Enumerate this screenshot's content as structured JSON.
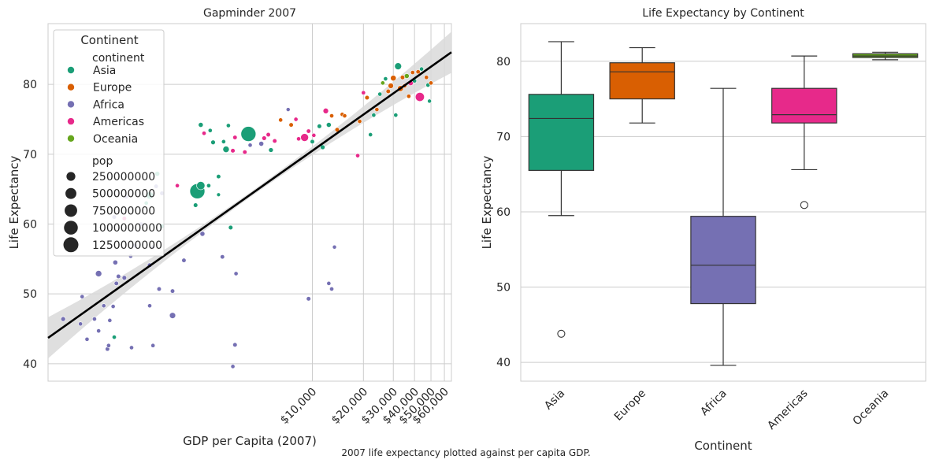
{
  "caption": "2007 life expectancy plotted against per capita GDP.",
  "colors": {
    "Asia": "#1b9e77",
    "Europe": "#d95f02",
    "Africa": "#7570b3",
    "Americas": "#e7298a",
    "Oceania": "#66a61e",
    "regression": "#000000",
    "ci_band": "#d9d9d9",
    "grid": "#cccccc",
    "spine": "#cccccc"
  },
  "chart_data": [
    {
      "type": "scatter",
      "title": "Gapminder 2007",
      "xlabel": "GDP per Capita (2007)",
      "ylabel": "Life Expectancy",
      "xscale": "log",
      "xlim": [
        277,
        66000
      ],
      "ylim": [
        37.5,
        88.7
      ],
      "xtick_values": [
        10000,
        20000,
        30000,
        40000,
        50000,
        60000
      ],
      "xtick_labels": [
        "$10,000",
        "$20,000",
        "$30,000",
        "$40,000",
        "$50,000",
        "$60,000"
      ],
      "ytick_values": [
        40,
        50,
        60,
        70,
        80
      ],
      "ytick_labels": [
        "40",
        "50",
        "60",
        "70",
        "80"
      ],
      "grid": true,
      "legend": {
        "title": "Continent",
        "hue_header": "continent",
        "hue_items": [
          "Asia",
          "Europe",
          "Africa",
          "Americas",
          "Oceania"
        ],
        "size_header": "pop",
        "size_items": [
          "250000000",
          "500000000",
          "750000000",
          "1000000000",
          "1250000000"
        ],
        "size_values": [
          250000000,
          500000000,
          750000000,
          1000000000,
          1250000000
        ],
        "position": "upper left"
      },
      "regression_line": {
        "x1": 277,
        "y1": 43.7,
        "x2": 66000,
        "y2": 84.6
      },
      "points": [
        {
          "x": 1600,
          "y": 65.5,
          "c": "Americas",
          "pop": 4100000
        },
        {
          "x": 2450,
          "y": 65.5,
          "c": "Asia",
          "pop": 5000000
        },
        {
          "x": 2100,
          "y": 64.7,
          "c": "Asia",
          "pop": 1318000000
        },
        {
          "x": 2200,
          "y": 65.5,
          "c": "Asia",
          "pop": 230000000
        },
        {
          "x": 1100,
          "y": 64.1,
          "c": "Asia",
          "pop": 150000000
        },
        {
          "x": 1300,
          "y": 64.4,
          "c": "Africa",
          "pop": 10000000
        },
        {
          "x": 1050,
          "y": 63.0,
          "c": "Asia",
          "pop": 5000000
        },
        {
          "x": 1200,
          "y": 65.4,
          "c": "Africa",
          "pop": 8000000
        },
        {
          "x": 800,
          "y": 63.9,
          "c": "Africa",
          "pop": 5000000
        },
        {
          "x": 680,
          "y": 61.0,
          "c": "Africa",
          "pop": 10000000
        },
        {
          "x": 780,
          "y": 60.8,
          "c": "Americas",
          "pop": 8000000
        },
        {
          "x": 980,
          "y": 60.0,
          "c": "Africa",
          "pop": 5000000
        },
        {
          "x": 2050,
          "y": 62.7,
          "c": "Asia",
          "pop": 10000000
        },
        {
          "x": 1220,
          "y": 67.2,
          "c": "Asia",
          "pop": 20000000
        },
        {
          "x": 2800,
          "y": 66.8,
          "c": "Asia",
          "pop": 8000000
        },
        {
          "x": 1300,
          "y": 59.7,
          "c": "Asia",
          "pop": 15000000
        },
        {
          "x": 2250,
          "y": 58.6,
          "c": "Africa",
          "pop": 20000000
        },
        {
          "x": 900,
          "y": 56.9,
          "c": "Africa",
          "pop": 10000000
        },
        {
          "x": 850,
          "y": 55.4,
          "c": "Africa",
          "pop": 5000000
        },
        {
          "x": 1150,
          "y": 56.7,
          "c": "Africa",
          "pop": 5000000
        },
        {
          "x": 3300,
          "y": 59.5,
          "c": "Asia",
          "pop": 10000000
        },
        {
          "x": 2800,
          "y": 64.2,
          "c": "Asia",
          "pop": 1000000
        },
        {
          "x": 1100,
          "y": 54.1,
          "c": "Africa",
          "pop": 15000000
        },
        {
          "x": 1750,
          "y": 54.8,
          "c": "Africa",
          "pop": 8000000
        },
        {
          "x": 2950,
          "y": 55.3,
          "c": "Africa",
          "pop": 8000000
        },
        {
          "x": 690,
          "y": 54.5,
          "c": "Africa",
          "pop": 20000000
        },
        {
          "x": 720,
          "y": 52.5,
          "c": "Africa",
          "pop": 10000000
        },
        {
          "x": 780,
          "y": 52.3,
          "c": "Africa",
          "pop": 12000000
        },
        {
          "x": 550,
          "y": 52.9,
          "c": "Africa",
          "pop": 80000000
        },
        {
          "x": 700,
          "y": 51.5,
          "c": "Africa",
          "pop": 10000000
        },
        {
          "x": 1250,
          "y": 50.7,
          "c": "Africa",
          "pop": 8000000
        },
        {
          "x": 1500,
          "y": 50.4,
          "c": "Africa",
          "pop": 8000000
        },
        {
          "x": 1500,
          "y": 46.9,
          "c": "Africa",
          "pop": 70000000
        },
        {
          "x": 3550,
          "y": 52.9,
          "c": "Africa",
          "pop": 5000000
        },
        {
          "x": 340,
          "y": 46.4,
          "c": "Africa",
          "pop": 15000000
        },
        {
          "x": 440,
          "y": 49.6,
          "c": "Africa",
          "pop": 5000000
        },
        {
          "x": 430,
          "y": 45.7,
          "c": "Africa",
          "pop": 5000000
        },
        {
          "x": 470,
          "y": 43.5,
          "c": "Africa",
          "pop": 5000000
        },
        {
          "x": 520,
          "y": 46.4,
          "c": "Africa",
          "pop": 5000000
        },
        {
          "x": 590,
          "y": 48.3,
          "c": "Africa",
          "pop": 5000000
        },
        {
          "x": 640,
          "y": 46.2,
          "c": "Africa",
          "pop": 5000000
        },
        {
          "x": 670,
          "y": 48.2,
          "c": "Africa",
          "pop": 5000000
        },
        {
          "x": 550,
          "y": 44.7,
          "c": "Africa",
          "pop": 5000000
        },
        {
          "x": 620,
          "y": 42.1,
          "c": "Africa",
          "pop": 8000000
        },
        {
          "x": 630,
          "y": 42.6,
          "c": "Africa",
          "pop": 5000000
        },
        {
          "x": 680,
          "y": 43.8,
          "c": "Asia",
          "pop": 5000000
        },
        {
          "x": 860,
          "y": 42.3,
          "c": "Africa",
          "pop": 5000000
        },
        {
          "x": 1100,
          "y": 48.3,
          "c": "Africa",
          "pop": 5000000
        },
        {
          "x": 1150,
          "y": 42.6,
          "c": "Africa",
          "pop": 5000000
        },
        {
          "x": 3500,
          "y": 42.7,
          "c": "Africa",
          "pop": 10000000
        },
        {
          "x": 3400,
          "y": 39.6,
          "c": "Africa",
          "pop": 5000000
        },
        {
          "x": 9500,
          "y": 49.3,
          "c": "Africa",
          "pop": 10000000
        },
        {
          "x": 12500,
          "y": 51.5,
          "c": "Africa",
          "pop": 5000000
        },
        {
          "x": 13000,
          "y": 50.7,
          "c": "Africa",
          "pop": 5000000
        },
        {
          "x": 13500,
          "y": 56.7,
          "c": "Africa",
          "pop": 3000000
        },
        {
          "x": 4200,
          "y": 72.9,
          "c": "Asia",
          "pop": 1318000000
        },
        {
          "x": 3100,
          "y": 70.7,
          "c": "Asia",
          "pop": 85000000
        },
        {
          "x": 3500,
          "y": 72.4,
          "c": "Americas",
          "pop": 8000000
        },
        {
          "x": 3000,
          "y": 71.8,
          "c": "Asia",
          "pop": 5000000
        },
        {
          "x": 2600,
          "y": 71.7,
          "c": "Asia",
          "pop": 12000000
        },
        {
          "x": 2500,
          "y": 73.4,
          "c": "Asia",
          "pop": 5000000
        },
        {
          "x": 2200,
          "y": 74.2,
          "c": "Asia",
          "pop": 20000000
        },
        {
          "x": 2300,
          "y": 73.0,
          "c": "Americas",
          "pop": 5000000
        },
        {
          "x": 3200,
          "y": 74.1,
          "c": "Asia",
          "pop": 5000000
        },
        {
          "x": 3400,
          "y": 70.5,
          "c": "Americas",
          "pop": 10000000
        },
        {
          "x": 4000,
          "y": 70.3,
          "c": "Americas",
          "pop": 8000000
        },
        {
          "x": 4300,
          "y": 71.3,
          "c": "Africa",
          "pop": 5000000
        },
        {
          "x": 5000,
          "y": 71.5,
          "c": "Africa",
          "pop": 20000000
        },
        {
          "x": 5500,
          "y": 72.8,
          "c": "Americas",
          "pop": 8000000
        },
        {
          "x": 5200,
          "y": 72.3,
          "c": "Americas",
          "pop": 12000000
        },
        {
          "x": 5700,
          "y": 70.6,
          "c": "Asia",
          "pop": 15000000
        },
        {
          "x": 6000,
          "y": 71.9,
          "c": "Americas",
          "pop": 8000000
        },
        {
          "x": 6500,
          "y": 74.9,
          "c": "Europe",
          "pop": 5000000
        },
        {
          "x": 7200,
          "y": 76.4,
          "c": "Africa",
          "pop": 3000000
        },
        {
          "x": 7500,
          "y": 74.2,
          "c": "Europe",
          "pop": 8000000
        },
        {
          "x": 8000,
          "y": 75.0,
          "c": "Americas",
          "pop": 5000000
        },
        {
          "x": 8300,
          "y": 72.2,
          "c": "Americas",
          "pop": 5000000
        },
        {
          "x": 9000,
          "y": 72.4,
          "c": "Americas",
          "pop": 190000000
        },
        {
          "x": 9500,
          "y": 73.3,
          "c": "Americas",
          "pop": 8000000
        },
        {
          "x": 10000,
          "y": 71.8,
          "c": "Asia",
          "pop": 8000000
        },
        {
          "x": 10200,
          "y": 72.7,
          "c": "Americas",
          "pop": 5000000
        },
        {
          "x": 11000,
          "y": 74.0,
          "c": "Asia",
          "pop": 10000000
        },
        {
          "x": 11500,
          "y": 71.0,
          "c": "Asia",
          "pop": 15000000
        },
        {
          "x": 12000,
          "y": 76.2,
          "c": "Americas",
          "pop": 40000000
        },
        {
          "x": 12500,
          "y": 74.2,
          "c": "Asia",
          "pop": 20000000
        },
        {
          "x": 13000,
          "y": 75.5,
          "c": "Europe",
          "pop": 5000000
        },
        {
          "x": 14000,
          "y": 73.5,
          "c": "Europe",
          "pop": 10000000
        },
        {
          "x": 15000,
          "y": 75.7,
          "c": "Europe",
          "pop": 5000000
        },
        {
          "x": 15500,
          "y": 75.5,
          "c": "Europe",
          "pop": 5000000
        },
        {
          "x": 18500,
          "y": 69.8,
          "c": "Americas",
          "pop": 5000000
        },
        {
          "x": 19000,
          "y": 74.7,
          "c": "Europe",
          "pop": 5000000
        },
        {
          "x": 20000,
          "y": 78.8,
          "c": "Americas",
          "pop": 5000000
        },
        {
          "x": 21000,
          "y": 78.1,
          "c": "Europe",
          "pop": 10000000
        },
        {
          "x": 22000,
          "y": 72.8,
          "c": "Asia",
          "pop": 5000000
        },
        {
          "x": 23000,
          "y": 75.6,
          "c": "Asia",
          "pop": 5000000
        },
        {
          "x": 24000,
          "y": 76.4,
          "c": "Europe",
          "pop": 5000000
        },
        {
          "x": 25000,
          "y": 78.6,
          "c": "Asia",
          "pop": 5000000
        },
        {
          "x": 26000,
          "y": 80.2,
          "c": "Oceania",
          "pop": 5000000
        },
        {
          "x": 27000,
          "y": 80.8,
          "c": "Asia",
          "pop": 5000000
        },
        {
          "x": 28000,
          "y": 79.0,
          "c": "Europe",
          "pop": 10000000
        },
        {
          "x": 29000,
          "y": 79.8,
          "c": "Europe",
          "pop": 40000000
        },
        {
          "x": 30000,
          "y": 80.9,
          "c": "Europe",
          "pop": 50000000
        },
        {
          "x": 31000,
          "y": 75.6,
          "c": "Asia",
          "pop": 5000000
        },
        {
          "x": 32000,
          "y": 82.6,
          "c": "Asia",
          "pop": 120000000
        },
        {
          "x": 33000,
          "y": 79.4,
          "c": "Europe",
          "pop": 60000000
        },
        {
          "x": 34000,
          "y": 81.0,
          "c": "Europe",
          "pop": 10000000
        },
        {
          "x": 35000,
          "y": 79.8,
          "c": "Europe",
          "pop": 5000000
        },
        {
          "x": 36000,
          "y": 81.2,
          "c": "Oceania",
          "pop": 20000000
        },
        {
          "x": 37000,
          "y": 78.3,
          "c": "Europe",
          "pop": 5000000
        },
        {
          "x": 38000,
          "y": 80.2,
          "c": "Americas",
          "pop": 30000000
        },
        {
          "x": 39000,
          "y": 81.7,
          "c": "Europe",
          "pop": 5000000
        },
        {
          "x": 40000,
          "y": 80.5,
          "c": "Asia",
          "pop": 5000000
        },
        {
          "x": 42000,
          "y": 81.8,
          "c": "Europe",
          "pop": 8000000
        },
        {
          "x": 44000,
          "y": 82.2,
          "c": "Asia",
          "pop": 5000000
        },
        {
          "x": 43000,
          "y": 78.2,
          "c": "Americas",
          "pop": 301000000
        },
        {
          "x": 47000,
          "y": 81.0,
          "c": "Europe",
          "pop": 5000000
        },
        {
          "x": 48000,
          "y": 79.9,
          "c": "Asia",
          "pop": 5000000
        },
        {
          "x": 49000,
          "y": 77.6,
          "c": "Asia",
          "pop": 3000000
        },
        {
          "x": 50000,
          "y": 80.2,
          "c": "Europe",
          "pop": 5000000
        }
      ]
    },
    {
      "type": "box",
      "title": "Life Expectancy by Continent",
      "xlabel": "Continent",
      "ylabel": "Life Expectancy",
      "categories": [
        "Asia",
        "Europe",
        "Africa",
        "Americas",
        "Oceania"
      ],
      "ylim": [
        37.5,
        85
      ],
      "ytick_values": [
        40,
        50,
        60,
        70,
        80
      ],
      "ytick_labels": [
        "40",
        "50",
        "60",
        "70",
        "80"
      ],
      "grid": true,
      "boxes": [
        {
          "name": "Asia",
          "whislo": 59.5,
          "q1": 65.5,
          "med": 72.4,
          "q3": 75.6,
          "whishi": 82.6,
          "fliers": [
            43.8
          ]
        },
        {
          "name": "Europe",
          "whislo": 71.8,
          "q1": 75.0,
          "med": 78.6,
          "q3": 79.8,
          "whishi": 81.8,
          "fliers": []
        },
        {
          "name": "Africa",
          "whislo": 39.6,
          "q1": 47.8,
          "med": 52.9,
          "q3": 59.4,
          "whishi": 76.4,
          "fliers": []
        },
        {
          "name": "Americas",
          "whislo": 65.6,
          "q1": 71.8,
          "med": 72.9,
          "q3": 76.4,
          "whishi": 80.7,
          "fliers": [
            60.9
          ]
        },
        {
          "name": "Oceania",
          "whislo": 80.2,
          "q1": 80.5,
          "med": 80.7,
          "q3": 81.0,
          "whishi": 81.2,
          "fliers": []
        }
      ]
    }
  ]
}
